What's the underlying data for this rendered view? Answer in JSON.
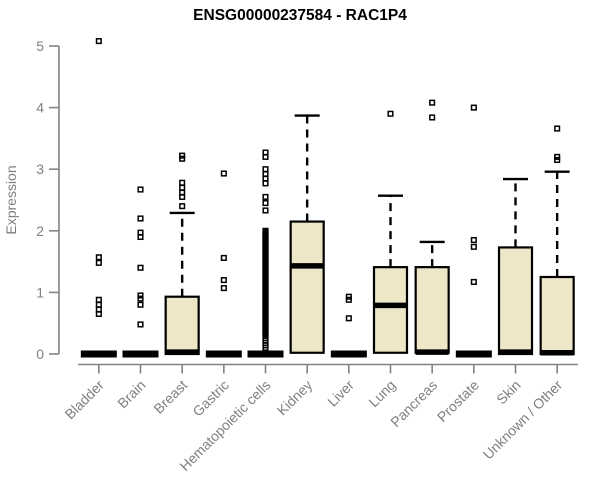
{
  "chart_data": {
    "type": "boxplot",
    "title": "ENSG00000237584 - RAC1P4",
    "ylabel": "Expression",
    "xlabel": "",
    "ylim": [
      0,
      5.15
    ],
    "yticks": [
      0,
      1,
      2,
      3,
      4,
      5
    ],
    "grid": false,
    "legend": "none",
    "colors": {
      "box_fill": "#EDE6C7",
      "box_stroke": "#000000",
      "median": "#000000",
      "outlier": "#000000",
      "axis": "#828282",
      "tick_label": "#7f7f7f",
      "title": "#000000",
      "background": "#ffffff"
    },
    "categories": [
      "Bladder",
      "Brain",
      "Breast",
      "Gastric",
      "Hematopoietic cells",
      "Kidney",
      "Liver",
      "Lung",
      "Pancreas",
      "Prostate",
      "Skin",
      "Unknown / Other"
    ],
    "series": [
      {
        "name": "Bladder",
        "q1": 0,
        "median": 0,
        "q3": 0.03,
        "whisker_low": 0,
        "whisker_high": 0.03,
        "outliers": [
          5.08,
          1.57,
          1.48,
          0.88,
          0.8,
          0.72,
          0.65
        ]
      },
      {
        "name": "Brain",
        "q1": 0,
        "median": 0,
        "q3": 0.03,
        "whisker_low": 0,
        "whisker_high": 0.03,
        "outliers": [
          2.67,
          2.2,
          1.97,
          1.9,
          1.4,
          0.95,
          0.9,
          0.8,
          0.48
        ]
      },
      {
        "name": "Breast",
        "q1": 0,
        "median": 0.03,
        "q3": 0.93,
        "whisker_low": 0,
        "whisker_high": 2.29,
        "outliers": [
          3.22,
          3.17,
          2.78,
          2.7,
          2.62,
          2.55,
          2.4
        ]
      },
      {
        "name": "Gastric",
        "q1": 0,
        "median": 0,
        "q3": 0.03,
        "whisker_low": 0,
        "whisker_high": 0.03,
        "outliers": [
          2.93,
          1.56,
          1.2,
          1.07
        ]
      },
      {
        "name": "Hematopoietic cells",
        "q1": 0,
        "median": 0,
        "q3": 0.03,
        "whisker_low": 0,
        "whisker_high": 0.03,
        "outliers": [
          3.27,
          3.2,
          3.0,
          2.92,
          2.85,
          2.77,
          2.55,
          2.45,
          2.33,
          2.0,
          0.26,
          0.22,
          0.18,
          0.14,
          0.1
        ],
        "outlier_strip": {
          "min": 0.3,
          "max": 1.98,
          "count": 85
        }
      },
      {
        "name": "Kidney",
        "q1": 0.02,
        "median": 1.43,
        "q3": 2.15,
        "whisker_low": 0,
        "whisker_high": 3.87,
        "outliers": []
      },
      {
        "name": "Liver",
        "q1": 0,
        "median": 0,
        "q3": 0.03,
        "whisker_low": 0,
        "whisker_high": 0.03,
        "outliers": [
          0.93,
          0.88,
          0.58
        ]
      },
      {
        "name": "Lung",
        "q1": 0.02,
        "median": 0.79,
        "q3": 1.41,
        "whisker_low": 0,
        "whisker_high": 2.57,
        "outliers": [
          3.9
        ]
      },
      {
        "name": "Pancreas",
        "q1": 0.02,
        "median": 0.03,
        "q3": 1.41,
        "whisker_low": 0,
        "whisker_high": 1.82,
        "outliers": [
          4.08,
          3.84
        ]
      },
      {
        "name": "Prostate",
        "q1": 0,
        "median": 0,
        "q3": 0.03,
        "whisker_low": 0,
        "whisker_high": 0.03,
        "outliers": [
          4.0,
          1.85,
          1.74,
          1.17
        ]
      },
      {
        "name": "Skin",
        "q1": 0,
        "median": 0.03,
        "q3": 1.73,
        "whisker_low": 0,
        "whisker_high": 2.84,
        "outliers": []
      },
      {
        "name": "Unknown / Other",
        "q1": 0,
        "median": 0.02,
        "q3": 1.25,
        "whisker_low": 0,
        "whisker_high": 2.96,
        "outliers": [
          3.66,
          3.2,
          3.15
        ]
      }
    ]
  }
}
